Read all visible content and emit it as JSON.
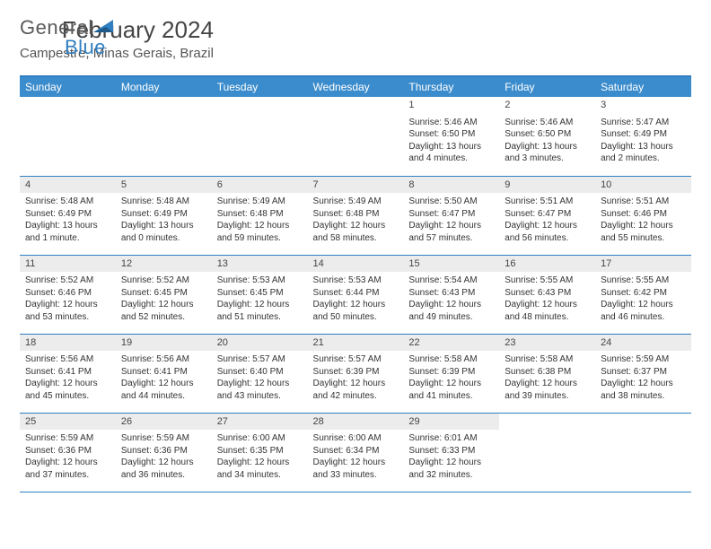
{
  "logo": {
    "part1": "General",
    "part2": "Blue"
  },
  "title": "February 2024",
  "location": "Campestre, Minas Gerais, Brazil",
  "colors": {
    "header_bg": "#3b8ccc",
    "header_text": "#ffffff",
    "border": "#2f7fc1",
    "daynum_bg": "#ececec",
    "text": "#333333",
    "logo_gray": "#5a5a5a",
    "logo_blue": "#2f7fc1"
  },
  "fonts": {
    "title_size": 26,
    "location_size": 15,
    "weekday_size": 12,
    "daynum_size": 11,
    "body_size": 10
  },
  "weekdays": [
    "Sunday",
    "Monday",
    "Tuesday",
    "Wednesday",
    "Thursday",
    "Friday",
    "Saturday"
  ],
  "weeks": [
    [
      {
        "day": "",
        "sunrise": "",
        "sunset": "",
        "daylight": ""
      },
      {
        "day": "",
        "sunrise": "",
        "sunset": "",
        "daylight": ""
      },
      {
        "day": "",
        "sunrise": "",
        "sunset": "",
        "daylight": ""
      },
      {
        "day": "",
        "sunrise": "",
        "sunset": "",
        "daylight": ""
      },
      {
        "day": "1",
        "sunrise": "Sunrise: 5:46 AM",
        "sunset": "Sunset: 6:50 PM",
        "daylight": "Daylight: 13 hours and 4 minutes."
      },
      {
        "day": "2",
        "sunrise": "Sunrise: 5:46 AM",
        "sunset": "Sunset: 6:50 PM",
        "daylight": "Daylight: 13 hours and 3 minutes."
      },
      {
        "day": "3",
        "sunrise": "Sunrise: 5:47 AM",
        "sunset": "Sunset: 6:49 PM",
        "daylight": "Daylight: 13 hours and 2 minutes."
      }
    ],
    [
      {
        "day": "4",
        "sunrise": "Sunrise: 5:48 AM",
        "sunset": "Sunset: 6:49 PM",
        "daylight": "Daylight: 13 hours and 1 minute."
      },
      {
        "day": "5",
        "sunrise": "Sunrise: 5:48 AM",
        "sunset": "Sunset: 6:49 PM",
        "daylight": "Daylight: 13 hours and 0 minutes."
      },
      {
        "day": "6",
        "sunrise": "Sunrise: 5:49 AM",
        "sunset": "Sunset: 6:48 PM",
        "daylight": "Daylight: 12 hours and 59 minutes."
      },
      {
        "day": "7",
        "sunrise": "Sunrise: 5:49 AM",
        "sunset": "Sunset: 6:48 PM",
        "daylight": "Daylight: 12 hours and 58 minutes."
      },
      {
        "day": "8",
        "sunrise": "Sunrise: 5:50 AM",
        "sunset": "Sunset: 6:47 PM",
        "daylight": "Daylight: 12 hours and 57 minutes."
      },
      {
        "day": "9",
        "sunrise": "Sunrise: 5:51 AM",
        "sunset": "Sunset: 6:47 PM",
        "daylight": "Daylight: 12 hours and 56 minutes."
      },
      {
        "day": "10",
        "sunrise": "Sunrise: 5:51 AM",
        "sunset": "Sunset: 6:46 PM",
        "daylight": "Daylight: 12 hours and 55 minutes."
      }
    ],
    [
      {
        "day": "11",
        "sunrise": "Sunrise: 5:52 AM",
        "sunset": "Sunset: 6:46 PM",
        "daylight": "Daylight: 12 hours and 53 minutes."
      },
      {
        "day": "12",
        "sunrise": "Sunrise: 5:52 AM",
        "sunset": "Sunset: 6:45 PM",
        "daylight": "Daylight: 12 hours and 52 minutes."
      },
      {
        "day": "13",
        "sunrise": "Sunrise: 5:53 AM",
        "sunset": "Sunset: 6:45 PM",
        "daylight": "Daylight: 12 hours and 51 minutes."
      },
      {
        "day": "14",
        "sunrise": "Sunrise: 5:53 AM",
        "sunset": "Sunset: 6:44 PM",
        "daylight": "Daylight: 12 hours and 50 minutes."
      },
      {
        "day": "15",
        "sunrise": "Sunrise: 5:54 AM",
        "sunset": "Sunset: 6:43 PM",
        "daylight": "Daylight: 12 hours and 49 minutes."
      },
      {
        "day": "16",
        "sunrise": "Sunrise: 5:55 AM",
        "sunset": "Sunset: 6:43 PM",
        "daylight": "Daylight: 12 hours and 48 minutes."
      },
      {
        "day": "17",
        "sunrise": "Sunrise: 5:55 AM",
        "sunset": "Sunset: 6:42 PM",
        "daylight": "Daylight: 12 hours and 46 minutes."
      }
    ],
    [
      {
        "day": "18",
        "sunrise": "Sunrise: 5:56 AM",
        "sunset": "Sunset: 6:41 PM",
        "daylight": "Daylight: 12 hours and 45 minutes."
      },
      {
        "day": "19",
        "sunrise": "Sunrise: 5:56 AM",
        "sunset": "Sunset: 6:41 PM",
        "daylight": "Daylight: 12 hours and 44 minutes."
      },
      {
        "day": "20",
        "sunrise": "Sunrise: 5:57 AM",
        "sunset": "Sunset: 6:40 PM",
        "daylight": "Daylight: 12 hours and 43 minutes."
      },
      {
        "day": "21",
        "sunrise": "Sunrise: 5:57 AM",
        "sunset": "Sunset: 6:39 PM",
        "daylight": "Daylight: 12 hours and 42 minutes."
      },
      {
        "day": "22",
        "sunrise": "Sunrise: 5:58 AM",
        "sunset": "Sunset: 6:39 PM",
        "daylight": "Daylight: 12 hours and 41 minutes."
      },
      {
        "day": "23",
        "sunrise": "Sunrise: 5:58 AM",
        "sunset": "Sunset: 6:38 PM",
        "daylight": "Daylight: 12 hours and 39 minutes."
      },
      {
        "day": "24",
        "sunrise": "Sunrise: 5:59 AM",
        "sunset": "Sunset: 6:37 PM",
        "daylight": "Daylight: 12 hours and 38 minutes."
      }
    ],
    [
      {
        "day": "25",
        "sunrise": "Sunrise: 5:59 AM",
        "sunset": "Sunset: 6:36 PM",
        "daylight": "Daylight: 12 hours and 37 minutes."
      },
      {
        "day": "26",
        "sunrise": "Sunrise: 5:59 AM",
        "sunset": "Sunset: 6:36 PM",
        "daylight": "Daylight: 12 hours and 36 minutes."
      },
      {
        "day": "27",
        "sunrise": "Sunrise: 6:00 AM",
        "sunset": "Sunset: 6:35 PM",
        "daylight": "Daylight: 12 hours and 34 minutes."
      },
      {
        "day": "28",
        "sunrise": "Sunrise: 6:00 AM",
        "sunset": "Sunset: 6:34 PM",
        "daylight": "Daylight: 12 hours and 33 minutes."
      },
      {
        "day": "29",
        "sunrise": "Sunrise: 6:01 AM",
        "sunset": "Sunset: 6:33 PM",
        "daylight": "Daylight: 12 hours and 32 minutes."
      },
      {
        "day": "",
        "sunrise": "",
        "sunset": "",
        "daylight": ""
      },
      {
        "day": "",
        "sunrise": "",
        "sunset": "",
        "daylight": ""
      }
    ]
  ]
}
